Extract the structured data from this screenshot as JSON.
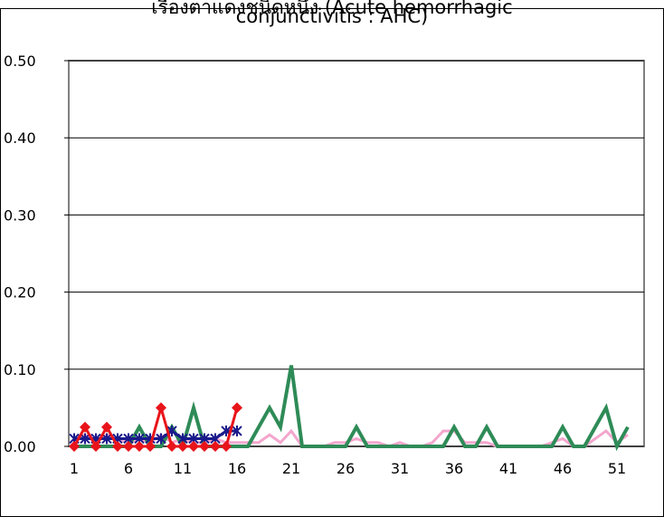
{
  "chart_data": {
    "type": "line",
    "title_line1": "เรื่องตาแดงชนิดหนึ่ง (Acute hemorrhagic",
    "title_line2": "conjunctivitis : AHC)",
    "ylim": [
      0,
      0.5
    ],
    "yticks": [
      "0.00",
      "0.10",
      "0.20",
      "0.30",
      "0.40",
      "0.50"
    ],
    "xlim": [
      1,
      53
    ],
    "xticks": [
      "1",
      "6",
      "11",
      "16",
      "21",
      "26",
      "31",
      "36",
      "41",
      "46",
      "51"
    ],
    "grid": true,
    "legend": "none",
    "series": [
      {
        "color": "#f4a6cd",
        "marker": "none",
        "points": [
          [
            1,
            0.01
          ],
          [
            2,
            0.015
          ],
          [
            3,
            0.005
          ],
          [
            4,
            0.015
          ],
          [
            5,
            0.01
          ],
          [
            6,
            0.005
          ],
          [
            7,
            0.01
          ],
          [
            8,
            0.005
          ],
          [
            9,
            0.015
          ],
          [
            10,
            0.005
          ],
          [
            11,
            0.01
          ],
          [
            12,
            0.005
          ],
          [
            13,
            0.005
          ],
          [
            14,
            0.01
          ],
          [
            15,
            0.005
          ],
          [
            16,
            0.005
          ],
          [
            17,
            0.005
          ],
          [
            18,
            0.005
          ],
          [
            19,
            0.015
          ],
          [
            20,
            0.005
          ],
          [
            21,
            0.02
          ],
          [
            22,
            0
          ],
          [
            23,
            0
          ],
          [
            24,
            0
          ],
          [
            25,
            0.005
          ],
          [
            26,
            0.005
          ],
          [
            27,
            0.01
          ],
          [
            28,
            0.005
          ],
          [
            29,
            0.005
          ],
          [
            30,
            0
          ],
          [
            31,
            0.005
          ],
          [
            32,
            0
          ],
          [
            33,
            0
          ],
          [
            34,
            0.005
          ],
          [
            35,
            0.02
          ],
          [
            36,
            0.02
          ],
          [
            37,
            0.005
          ],
          [
            38,
            0.005
          ],
          [
            39,
            0.005
          ],
          [
            40,
            0
          ],
          [
            41,
            0
          ],
          [
            42,
            0
          ],
          [
            43,
            0
          ],
          [
            44,
            0
          ],
          [
            45,
            0.005
          ],
          [
            46,
            0.01
          ],
          [
            47,
            0
          ],
          [
            48,
            0
          ],
          [
            49,
            0.01
          ],
          [
            50,
            0.02
          ],
          [
            51,
            0.005
          ],
          [
            52,
            0.015
          ]
        ]
      },
      {
        "color": "#2e8b57",
        "marker": "none",
        "points": [
          [
            1,
            0
          ],
          [
            2,
            0
          ],
          [
            3,
            0
          ],
          [
            4,
            0
          ],
          [
            5,
            0
          ],
          [
            6,
            0
          ],
          [
            7,
            0.025
          ],
          [
            8,
            0
          ],
          [
            9,
            0
          ],
          [
            10,
            0.025
          ],
          [
            11,
            0
          ],
          [
            12,
            0.05
          ],
          [
            13,
            0
          ],
          [
            14,
            0
          ],
          [
            15,
            0
          ],
          [
            16,
            0
          ],
          [
            17,
            0
          ],
          [
            18,
            0.025
          ],
          [
            19,
            0.05
          ],
          [
            20,
            0.025
          ],
          [
            21,
            0.105
          ],
          [
            22,
            0
          ],
          [
            23,
            0
          ],
          [
            24,
            0
          ],
          [
            25,
            0
          ],
          [
            26,
            0
          ],
          [
            27,
            0.025
          ],
          [
            28,
            0
          ],
          [
            29,
            0
          ],
          [
            30,
            0
          ],
          [
            31,
            0
          ],
          [
            32,
            0
          ],
          [
            33,
            0
          ],
          [
            34,
            0
          ],
          [
            35,
            0
          ],
          [
            36,
            0.025
          ],
          [
            37,
            0
          ],
          [
            38,
            0
          ],
          [
            39,
            0.025
          ],
          [
            40,
            0
          ],
          [
            41,
            0
          ],
          [
            42,
            0
          ],
          [
            43,
            0
          ],
          [
            44,
            0
          ],
          [
            45,
            0
          ],
          [
            46,
            0.025
          ],
          [
            47,
            0
          ],
          [
            48,
            0
          ],
          [
            49,
            0.025
          ],
          [
            50,
            0.05
          ],
          [
            51,
            0
          ],
          [
            52,
            0.025
          ]
        ]
      },
      {
        "color": "#1a1a8c",
        "marker": "asterisk",
        "points": [
          [
            1,
            0.01
          ],
          [
            2,
            0.01
          ],
          [
            3,
            0.01
          ],
          [
            4,
            0.01
          ],
          [
            5,
            0.01
          ],
          [
            6,
            0.01
          ],
          [
            7,
            0.01
          ],
          [
            8,
            0.01
          ],
          [
            9,
            0.01
          ],
          [
            10,
            0.02
          ],
          [
            11,
            0.01
          ],
          [
            12,
            0.01
          ],
          [
            13,
            0.01
          ],
          [
            14,
            0.01
          ],
          [
            15,
            0.02
          ],
          [
            16,
            0.02
          ]
        ]
      },
      {
        "color": "#e8141a",
        "marker": "diamond",
        "points": [
          [
            1,
            0
          ],
          [
            2,
            0.025
          ],
          [
            3,
            0
          ],
          [
            4,
            0.025
          ],
          [
            5,
            0
          ],
          [
            6,
            0
          ],
          [
            7,
            0
          ],
          [
            8,
            0
          ],
          [
            9,
            0.05
          ],
          [
            10,
            0
          ],
          [
            11,
            0
          ],
          [
            12,
            0
          ],
          [
            13,
            0
          ],
          [
            14,
            0
          ],
          [
            15,
            0
          ],
          [
            16,
            0.05
          ]
        ]
      }
    ]
  }
}
